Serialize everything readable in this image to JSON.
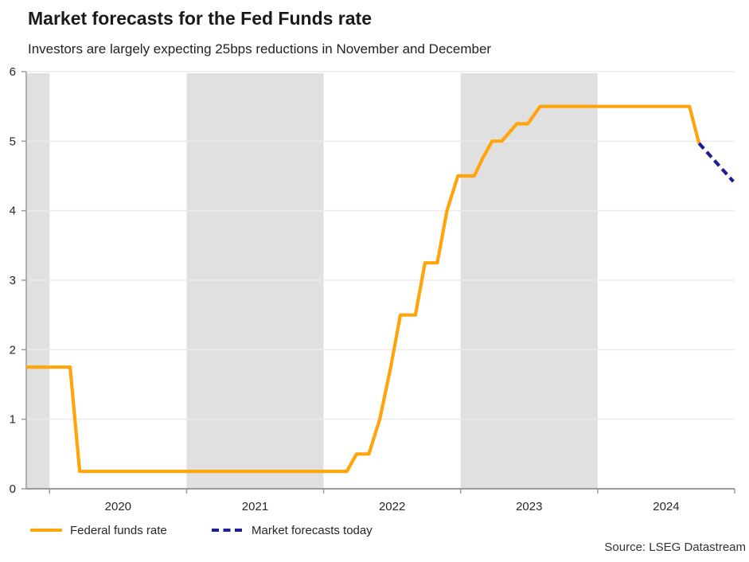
{
  "header": {
    "title": "Market forecasts for the Fed Funds rate",
    "subtitle": "Investors are largely expecting 25bps reductions in November and December"
  },
  "legend": {
    "items": [
      {
        "label": "Federal funds rate",
        "style": "solid",
        "color": "#FFA40A"
      },
      {
        "label": "Market forecasts today",
        "style": "dashed",
        "color": "#1E1E96"
      }
    ]
  },
  "source": {
    "text": "Source: LSEG Datastream"
  },
  "colors": {
    "line_orange": "#FFA40A",
    "forecast_navy": "#1E1E96",
    "band_gray": "#E0E0E0",
    "gridline": "#ECECEC",
    "axis": "#9A9A9A",
    "tick_text": "#262626"
  },
  "chart_data": {
    "type": "line",
    "title": "Market forecasts for the Fed Funds rate",
    "subtitle": "Investors are largely expecting 25bps reductions in November and December",
    "xlabel": "",
    "ylabel": "",
    "grid": true,
    "legend_position": "bottom",
    "x_axis": {
      "min": 2019.83,
      "max": 2025.0,
      "tick_years": [
        2020,
        2021,
        2022,
        2023,
        2024,
        2025
      ],
      "year_labels": [
        {
          "label": "2020",
          "center": 2020.5
        },
        {
          "label": "2021",
          "center": 2021.5
        },
        {
          "label": "2022",
          "center": 2022.5
        },
        {
          "label": "2023",
          "center": 2023.5
        },
        {
          "label": "2024",
          "center": 2024.5
        }
      ]
    },
    "y_axis": {
      "min": 0,
      "max": 6,
      "ticks": [
        0,
        1,
        2,
        3,
        4,
        5,
        6
      ]
    },
    "shaded_bands": [
      [
        2019.83,
        2020.0
      ],
      [
        2021.0,
        2022.0
      ],
      [
        2023.0,
        2024.0
      ]
    ],
    "series": [
      {
        "name": "Federal funds rate",
        "style": "solid",
        "color": "#FFA40A",
        "points": [
          [
            2019.83,
            1.75
          ],
          [
            2020.15,
            1.75
          ],
          [
            2020.22,
            0.25
          ],
          [
            2022.17,
            0.25
          ],
          [
            2022.24,
            0.5
          ],
          [
            2022.33,
            0.5
          ],
          [
            2022.41,
            1.0
          ],
          [
            2022.49,
            1.75
          ],
          [
            2022.56,
            2.5
          ],
          [
            2022.67,
            2.5
          ],
          [
            2022.74,
            3.25
          ],
          [
            2022.83,
            3.25
          ],
          [
            2022.9,
            4.0
          ],
          [
            2022.98,
            4.5
          ],
          [
            2023.1,
            4.5
          ],
          [
            2023.16,
            4.75
          ],
          [
            2023.23,
            5.0
          ],
          [
            2023.3,
            5.0
          ],
          [
            2023.41,
            5.25
          ],
          [
            2023.49,
            5.25
          ],
          [
            2023.58,
            5.5
          ],
          [
            2024.67,
            5.5
          ],
          [
            2024.74,
            4.97
          ]
        ]
      },
      {
        "name": "Market forecasts today",
        "style": "dashed",
        "color": "#1E1E96",
        "points": [
          [
            2024.74,
            4.97
          ],
          [
            2024.99,
            4.42
          ]
        ]
      }
    ]
  }
}
